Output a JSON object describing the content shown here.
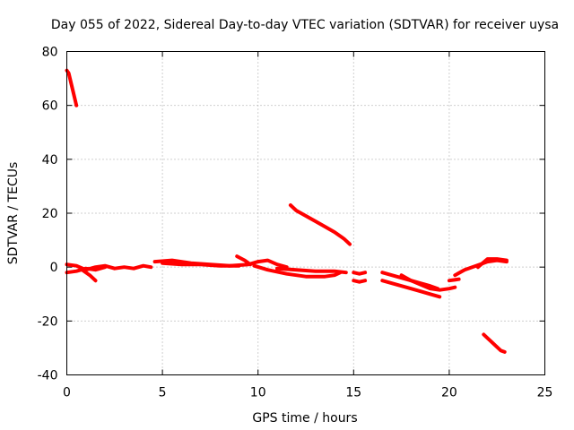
{
  "chart_data": {
    "type": "line",
    "title": "Day 055 of 2022, Sidereal Day-to-day VTEC variation (SDTVAR) for receiver uysa",
    "xlabel": "GPS time / hours",
    "ylabel": "SDTVAR / TECUs",
    "xlim": [
      0,
      25
    ],
    "ylim": [
      -40,
      80
    ],
    "xticks": [
      0,
      5,
      10,
      15,
      20,
      25
    ],
    "xtick_labels": [
      "0",
      "5",
      "10",
      "15",
      "20",
      "25"
    ],
    "yticks": [
      -40,
      -20,
      0,
      20,
      40,
      60,
      80
    ],
    "ytick_labels": [
      "-40",
      "-20",
      "0",
      "20",
      "40",
      "60",
      "80"
    ],
    "grid": true,
    "color": "#ff0000",
    "series": [
      {
        "name": "s1",
        "points": [
          [
            0.0,
            73
          ],
          [
            0.1,
            72
          ],
          [
            0.3,
            66
          ],
          [
            0.5,
            60
          ]
        ]
      },
      {
        "name": "s2",
        "points": [
          [
            0.0,
            1
          ],
          [
            0.5,
            0.5
          ],
          [
            1.0,
            -1
          ],
          [
            1.5,
            0
          ],
          [
            2.0,
            0.5
          ],
          [
            2.5,
            -0.5
          ],
          [
            3.0,
            0
          ],
          [
            3.5,
            -0.5
          ],
          [
            4.0,
            0.5
          ],
          [
            4.4,
            0
          ]
        ]
      },
      {
        "name": "s3",
        "points": [
          [
            0.0,
            -2
          ],
          [
            0.5,
            -1.5
          ],
          [
            1.0,
            -0.5
          ],
          [
            1.5,
            -1
          ],
          [
            2.0,
            0
          ]
        ]
      },
      {
        "name": "s4",
        "points": [
          [
            0.8,
            -1
          ],
          [
            1.2,
            -3
          ],
          [
            1.5,
            -5
          ]
        ]
      },
      {
        "name": "s5",
        "points": [
          [
            4.6,
            2
          ],
          [
            5.5,
            2.5
          ],
          [
            6.5,
            1.5
          ],
          [
            7.5,
            1
          ],
          [
            8.5,
            0.5
          ],
          [
            9.5,
            1
          ],
          [
            10.0,
            2
          ],
          [
            10.5,
            2.5
          ],
          [
            11.0,
            1
          ],
          [
            11.5,
            0
          ]
        ]
      },
      {
        "name": "s6",
        "points": [
          [
            5.0,
            1.5
          ],
          [
            6.0,
            1
          ],
          [
            7.0,
            1
          ],
          [
            8.0,
            0.5
          ],
          [
            9.0,
            0.5
          ]
        ]
      },
      {
        "name": "s7",
        "points": [
          [
            8.9,
            4
          ],
          [
            9.3,
            2.5
          ],
          [
            9.6,
            1
          ]
        ]
      },
      {
        "name": "s8",
        "points": [
          [
            9.8,
            0.5
          ],
          [
            10.5,
            -1
          ],
          [
            11.5,
            -2.5
          ],
          [
            12.5,
            -3.5
          ],
          [
            13.5,
            -3.5
          ],
          [
            14.0,
            -3
          ],
          [
            14.3,
            -2
          ]
        ]
      },
      {
        "name": "s9",
        "points": [
          [
            11.0,
            -0.5
          ],
          [
            12.0,
            -1
          ],
          [
            13.0,
            -1.5
          ],
          [
            14.0,
            -1.5
          ],
          [
            14.6,
            -2
          ]
        ]
      },
      {
        "name": "s10",
        "points": [
          [
            11.7,
            23
          ],
          [
            12.0,
            21
          ],
          [
            12.5,
            19
          ],
          [
            13.0,
            17
          ],
          [
            13.5,
            15
          ],
          [
            14.0,
            13
          ],
          [
            14.5,
            10.5
          ],
          [
            14.8,
            8.5
          ]
        ]
      },
      {
        "name": "s11",
        "points": [
          [
            15.0,
            -2
          ],
          [
            15.3,
            -2.5
          ],
          [
            15.6,
            -2
          ]
        ]
      },
      {
        "name": "s12",
        "points": [
          [
            15.0,
            -5
          ],
          [
            15.3,
            -5.5
          ],
          [
            15.6,
            -5
          ]
        ]
      },
      {
        "name": "s13",
        "points": [
          [
            16.5,
            -2
          ],
          [
            17.0,
            -3
          ],
          [
            17.5,
            -4
          ],
          [
            18.0,
            -5
          ],
          [
            18.5,
            -6
          ],
          [
            19.0,
            -7
          ],
          [
            19.4,
            -8
          ]
        ]
      },
      {
        "name": "s14",
        "points": [
          [
            16.5,
            -5
          ],
          [
            17.0,
            -6
          ],
          [
            17.5,
            -7
          ],
          [
            18.0,
            -8
          ],
          [
            18.5,
            -9
          ],
          [
            19.0,
            -10
          ],
          [
            19.5,
            -11
          ]
        ]
      },
      {
        "name": "s15",
        "points": [
          [
            17.5,
            -3
          ],
          [
            18.0,
            -5
          ],
          [
            18.5,
            -6.5
          ],
          [
            19.0,
            -8
          ],
          [
            19.5,
            -8.5
          ],
          [
            20.0,
            -8
          ],
          [
            20.3,
            -7.5
          ]
        ]
      },
      {
        "name": "s16",
        "points": [
          [
            20.0,
            -5
          ],
          [
            20.5,
            -4.5
          ]
        ]
      },
      {
        "name": "s17",
        "points": [
          [
            20.3,
            -3
          ],
          [
            20.8,
            -1
          ],
          [
            21.2,
            0
          ],
          [
            21.6,
            1
          ],
          [
            22.0,
            2
          ],
          [
            22.5,
            2.5
          ],
          [
            23.0,
            2
          ]
        ]
      },
      {
        "name": "s18",
        "points": [
          [
            21.5,
            0
          ],
          [
            22.0,
            3
          ],
          [
            22.5,
            3
          ],
          [
            23.0,
            2.5
          ]
        ]
      },
      {
        "name": "s19",
        "points": [
          [
            21.8,
            -25
          ],
          [
            22.1,
            -27
          ],
          [
            22.4,
            -29
          ],
          [
            22.7,
            -31
          ],
          [
            22.9,
            -31.5
          ]
        ]
      }
    ]
  }
}
